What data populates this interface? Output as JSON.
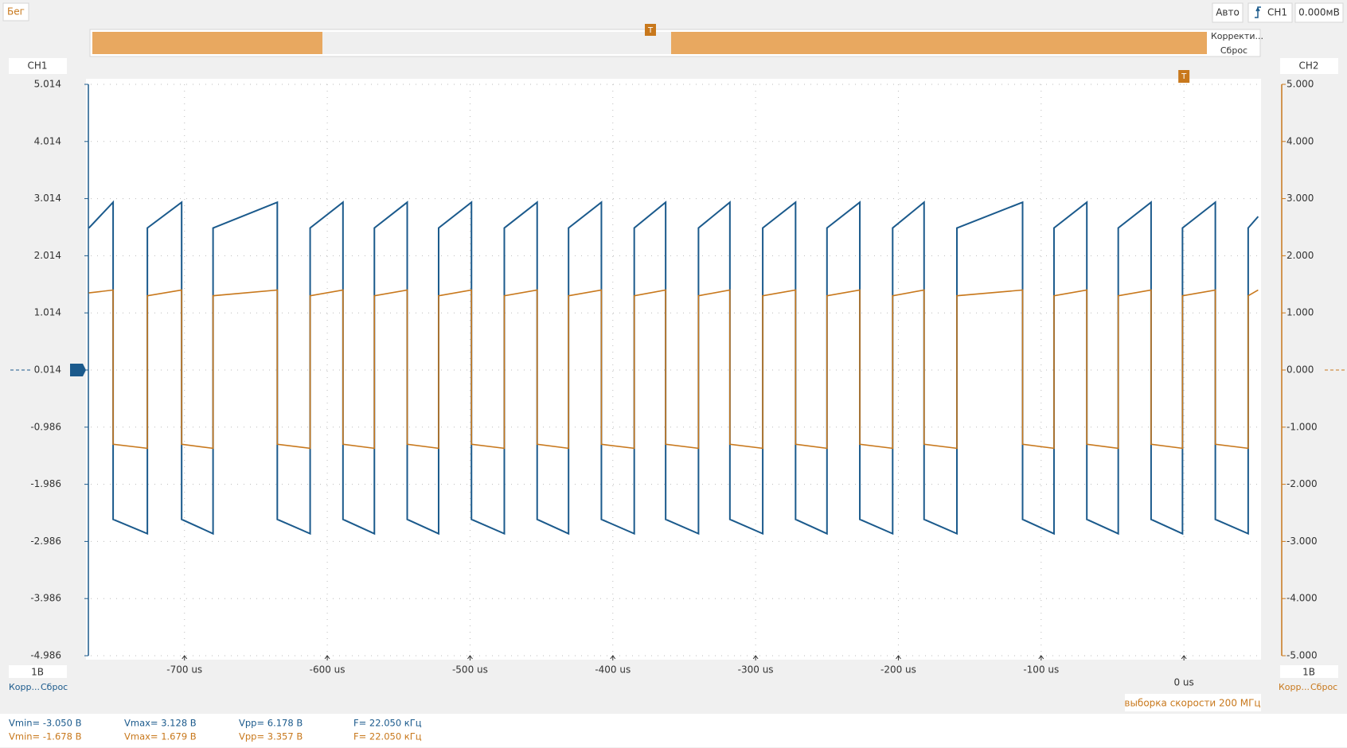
{
  "top_bar": {
    "run": "Бег",
    "mode": "Авто",
    "trigger_channel": "CH1",
    "trigger_level": "0.000мВ"
  },
  "trigger_marker": "T",
  "overview": {
    "adjust": "Корректи...",
    "reset": "Сброс"
  },
  "ch1_panel": {
    "scale": "1В",
    "adjust": "Корр...",
    "reset": "Сброс"
  },
  "ch2_panel": {
    "scale": "1В",
    "adjust": "Корр...",
    "reset": "Сброс"
  },
  "sample_rate": "выборка скорости 200 МГц",
  "measurements": {
    "rows": [
      [
        "Vmin= -3.050 В",
        "Vmax= 3.128 В",
        "Vpp= 6.178 В",
        "F= 22.050 кГц"
      ],
      [
        "Vmin= -1.678 В",
        "Vmax= 1.679 В",
        "Vpp= 3.357 В",
        "F= 22.050 кГц"
      ]
    ]
  },
  "chart_data": {
    "type": "line",
    "x": [
      -767,
      -750,
      -750,
      -726,
      -726,
      -702,
      -702,
      -680,
      -680,
      -635,
      -635,
      -612,
      -612,
      -589,
      -589,
      -567,
      -567,
      -544,
      -544,
      -522,
      -522,
      -499,
      -499,
      -476,
      -476,
      -453,
      -453,
      -431,
      -431,
      -408,
      -408,
      -385,
      -385,
      -363,
      -363,
      -340,
      -340,
      -318,
      -318,
      -295,
      -295,
      -272,
      -272,
      -250,
      -250,
      -227,
      -227,
      -204,
      -204,
      -182,
      -182,
      -159,
      -159,
      -113,
      -113,
      -91,
      -91,
      -68,
      -68,
      -46,
      -46,
      -23,
      -23,
      -1,
      -1,
      22,
      22,
      45,
      45,
      52
    ],
    "series": [
      {
        "name": "CH1",
        "color": "#1b5a8c",
        "values": [
          2.5,
          2.95,
          -2.6,
          -2.85,
          2.5,
          2.95,
          -2.6,
          -2.85,
          2.5,
          2.95,
          -2.6,
          -2.85,
          2.5,
          2.95,
          -2.6,
          -2.85,
          2.5,
          2.95,
          -2.6,
          -2.85,
          2.5,
          2.95,
          -2.6,
          -2.85,
          2.5,
          2.95,
          -2.6,
          -2.85,
          2.5,
          2.95,
          -2.6,
          -2.85,
          2.5,
          2.95,
          -2.6,
          -2.85,
          2.5,
          2.95,
          -2.6,
          -2.85,
          2.5,
          2.95,
          -2.6,
          -2.85,
          2.5,
          2.95,
          -2.6,
          -2.85,
          2.5,
          2.95,
          -2.6,
          -2.85,
          2.5,
          2.95,
          -2.6,
          -2.85,
          2.5,
          2.95,
          -2.6,
          -2.85,
          2.5,
          2.95,
          -2.6,
          -2.85,
          2.5,
          2.95,
          -2.6,
          -2.85,
          2.5,
          2.7
        ]
      },
      {
        "name": "CH2",
        "color": "#c8781c",
        "axis": "y2",
        "values": [
          1.35,
          1.4,
          -1.3,
          -1.37,
          1.3,
          1.4,
          -1.3,
          -1.37,
          1.3,
          1.4,
          -1.3,
          -1.37,
          1.3,
          1.4,
          -1.3,
          -1.37,
          1.3,
          1.4,
          -1.3,
          -1.37,
          1.3,
          1.4,
          -1.3,
          -1.37,
          1.3,
          1.4,
          -1.3,
          -1.37,
          1.3,
          1.4,
          -1.3,
          -1.37,
          1.3,
          1.4,
          -1.3,
          -1.37,
          1.3,
          1.4,
          -1.3,
          -1.37,
          1.3,
          1.4,
          -1.3,
          -1.37,
          1.3,
          1.4,
          -1.3,
          -1.37,
          1.3,
          1.4,
          -1.3,
          -1.37,
          1.3,
          1.4,
          -1.3,
          -1.37,
          1.3,
          1.4,
          -1.3,
          -1.37,
          1.3,
          1.4,
          -1.3,
          -1.37,
          1.3,
          1.4,
          -1.3,
          -1.37,
          1.3,
          1.4
        ]
      }
    ],
    "xlim": [
      -769,
      54
    ],
    "xticks": [
      {
        "value": -700,
        "label": "-700 us"
      },
      {
        "value": -600,
        "label": "-600 us"
      },
      {
        "value": -500,
        "label": "-500 us"
      },
      {
        "value": -400,
        "label": "-400 us"
      },
      {
        "value": -300,
        "label": "-300 us"
      },
      {
        "value": -200,
        "label": "-200 us"
      },
      {
        "value": -100,
        "label": "-100 us"
      },
      {
        "value": 0,
        "label": "0 us"
      }
    ],
    "ylim": [
      -4.986,
      5.014
    ],
    "yticks": [
      5.014,
      4.014,
      3.014,
      2.014,
      1.014,
      0.014,
      -0.986,
      -1.986,
      -2.986,
      -3.986,
      -4.986
    ],
    "y2lim": [
      -5,
      5
    ],
    "y2ticks": [
      {
        "value": 5,
        "label": "5.000"
      },
      {
        "value": 4,
        "label": "4.000"
      },
      {
        "value": 3,
        "label": "3.000"
      },
      {
        "value": 2,
        "label": "2.000"
      },
      {
        "value": 1,
        "label": "1.000"
      },
      {
        "value": 0,
        "label": "0.000"
      },
      {
        "value": -1,
        "label": "-1.000"
      },
      {
        "value": -2,
        "label": "-2.000"
      },
      {
        "value": -3,
        "label": "-3.000"
      },
      {
        "value": -4,
        "label": "-4.000"
      },
      {
        "value": -5,
        "label": "-5.000"
      }
    ],
    "grid": true
  }
}
